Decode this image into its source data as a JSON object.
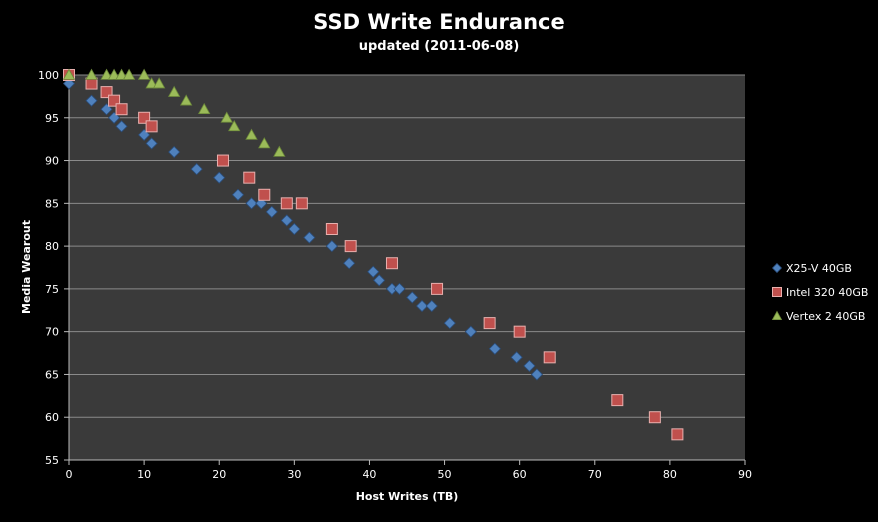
{
  "chart_data": {
    "type": "scatter",
    "title": "SSD Write Endurance",
    "subtitle": "updated (2011-06-08)",
    "xlabel": "Host Writes (TB)",
    "ylabel": "Media Wearout",
    "xlim": [
      0,
      90
    ],
    "ylim": [
      55,
      100
    ],
    "xticks": [
      0,
      10,
      20,
      30,
      40,
      50,
      60,
      70,
      80,
      90
    ],
    "yticks": [
      55,
      60,
      65,
      70,
      75,
      80,
      85,
      90,
      95,
      100
    ],
    "grid": "horizontal",
    "legend_position": "right",
    "background": "#3a3a3a",
    "series": [
      {
        "name": "X25-V 40GB",
        "marker": "diamond",
        "color": "#4f81bd",
        "points": [
          [
            0,
            99
          ],
          [
            3,
            97
          ],
          [
            5,
            96
          ],
          [
            6,
            95
          ],
          [
            7,
            94
          ],
          [
            10,
            93
          ],
          [
            11,
            92
          ],
          [
            14,
            91
          ],
          [
            17,
            89
          ],
          [
            20,
            88
          ],
          [
            22.5,
            86
          ],
          [
            24.3,
            85
          ],
          [
            25.6,
            85
          ],
          [
            27,
            84
          ],
          [
            29,
            83
          ],
          [
            30,
            82
          ],
          [
            32,
            81
          ],
          [
            35,
            80
          ],
          [
            37.3,
            78
          ],
          [
            40.5,
            77
          ],
          [
            41.3,
            76
          ],
          [
            43,
            75
          ],
          [
            44,
            75
          ],
          [
            45.7,
            74
          ],
          [
            47,
            73
          ],
          [
            48.3,
            73
          ],
          [
            50.7,
            71
          ],
          [
            53.5,
            70
          ],
          [
            56.7,
            68
          ],
          [
            59.6,
            67
          ],
          [
            61.3,
            66
          ],
          [
            62.3,
            65
          ]
        ]
      },
      {
        "name": "Intel 320 40GB",
        "marker": "square",
        "color": "#c0504d",
        "points": [
          [
            0,
            100
          ],
          [
            3,
            99
          ],
          [
            5,
            98
          ],
          [
            6,
            97
          ],
          [
            7,
            96
          ],
          [
            10,
            95
          ],
          [
            11,
            94
          ],
          [
            20.5,
            90
          ],
          [
            24,
            88
          ],
          [
            26,
            86
          ],
          [
            29,
            85
          ],
          [
            31,
            85
          ],
          [
            35,
            82
          ],
          [
            37.5,
            80
          ],
          [
            43,
            78
          ],
          [
            49,
            75
          ],
          [
            56,
            71
          ],
          [
            60,
            70
          ],
          [
            64,
            67
          ],
          [
            73,
            62
          ],
          [
            78,
            60
          ],
          [
            81,
            58
          ]
        ]
      },
      {
        "name": "Vertex 2 40GB",
        "marker": "triangle",
        "color": "#9bbb59",
        "points": [
          [
            0,
            100
          ],
          [
            3,
            100
          ],
          [
            5,
            100
          ],
          [
            6,
            100
          ],
          [
            7,
            100
          ],
          [
            8,
            100
          ],
          [
            10,
            100
          ],
          [
            11,
            99
          ],
          [
            12,
            99
          ],
          [
            14,
            98
          ],
          [
            15.6,
            97
          ],
          [
            18,
            96
          ],
          [
            21,
            95
          ],
          [
            22,
            94
          ],
          [
            24.3,
            93
          ],
          [
            26,
            92
          ],
          [
            28,
            91
          ]
        ]
      }
    ]
  }
}
